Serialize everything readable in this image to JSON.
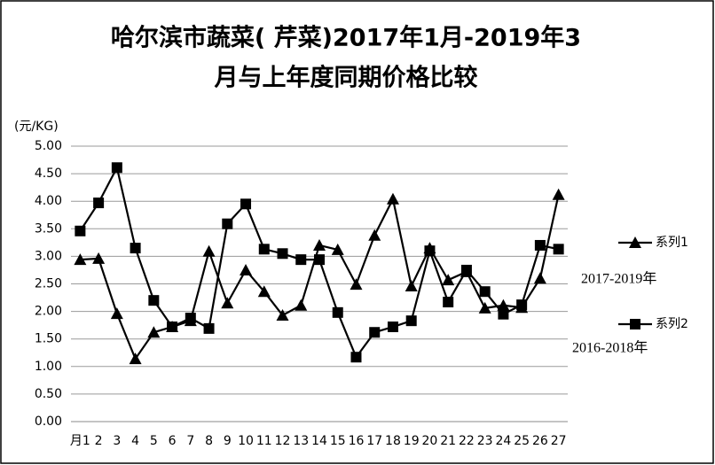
{
  "chart_data": {
    "type": "line",
    "title": [
      "哈尔滨市蔬菜( 芹菜)2017年1月-2019年3",
      "月与上年度同期价格比较"
    ],
    "y_label": "(元/KG)",
    "categories": [
      "月1",
      "2",
      "3",
      "4",
      "5",
      "6",
      "7",
      "8",
      "9",
      "10",
      "11",
      "12",
      "13",
      "14",
      "15",
      "16",
      "17",
      "18",
      "19",
      "20",
      "21",
      "22",
      "23",
      "24",
      "25",
      "26",
      "27"
    ],
    "series": [
      {
        "name": "系列1",
        "color": "#000000",
        "marker": "triangle",
        "values": [
          2.94,
          2.96,
          1.96,
          1.14,
          1.62,
          1.72,
          1.83,
          3.09,
          2.15,
          2.75,
          2.36,
          1.93,
          2.11,
          3.2,
          3.12,
          2.49,
          3.38,
          4.04,
          2.46,
          3.15,
          2.57,
          2.72,
          2.06,
          2.11,
          2.07,
          2.6,
          4.12
        ]
      },
      {
        "name": "系列2",
        "color": "#000000",
        "marker": "square",
        "values": [
          3.46,
          3.97,
          4.61,
          3.15,
          2.2,
          1.72,
          1.88,
          1.69,
          3.59,
          3.95,
          3.13,
          3.05,
          2.94,
          2.94,
          1.98,
          1.17,
          1.62,
          1.72,
          1.83,
          3.1,
          2.17,
          2.75,
          2.36,
          1.95,
          2.12,
          3.2,
          3.13
        ]
      }
    ],
    "annotations": [
      "2017-2019年",
      "2016-2018年"
    ],
    "ylim": [
      0,
      5
    ],
    "yticks": [
      {
        "value": 0,
        "label": "0.00"
      },
      {
        "value": 0.5,
        "label": "0.50"
      },
      {
        "value": 1,
        "label": "1.00"
      },
      {
        "value": 1.5,
        "label": "1.50"
      },
      {
        "value": 2,
        "label": "2.00"
      },
      {
        "value": 2.5,
        "label": "2.50"
      },
      {
        "value": 3,
        "label": "3.00"
      },
      {
        "value": 3.5,
        "label": "3.50"
      },
      {
        "value": 4,
        "label": "4.00"
      },
      {
        "value": 4.5,
        "label": "4.50"
      },
      {
        "value": 5,
        "label": "5.00"
      }
    ],
    "grid": true,
    "legend": "right"
  }
}
